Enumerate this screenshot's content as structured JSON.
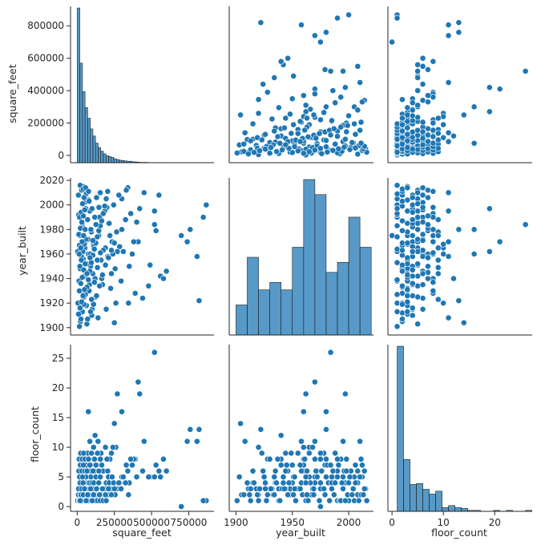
{
  "chart_data": {
    "type": "scatter",
    "variables": [
      "square_feet",
      "year_built",
      "floor_count"
    ],
    "axis_labels": {
      "square_feet": "square_feet",
      "year_built": "year_built",
      "floor_count": "floor_count"
    },
    "ranges": {
      "square_feet": [
        -45000,
        920000
      ],
      "year_built": [
        1894,
        2022
      ],
      "floor_count": [
        -0.8,
        27.3
      ]
    },
    "ticks": {
      "square_feet_x": [
        0,
        250000,
        500000,
        750000
      ],
      "square_feet_x_labels": [
        "0",
        "250000",
        "500000",
        "750000"
      ],
      "square_feet_y": [
        0,
        200000,
        400000,
        600000,
        800000
      ],
      "square_feet_y_labels": [
        "0",
        "200000",
        "400000",
        "600000",
        "800000"
      ],
      "year_built": [
        1900,
        1950,
        2000
      ],
      "year_built_labels": [
        "1900",
        "1950",
        "2000"
      ],
      "year_built_y": [
        1900,
        1920,
        1940,
        1960,
        1980,
        2000,
        2020
      ],
      "year_built_y_labels": [
        "1900",
        "1920",
        "1940",
        "1960",
        "1980",
        "2000",
        "2020"
      ],
      "floor_count": [
        0,
        10,
        20
      ],
      "floor_count_labels": [
        "0",
        "10",
        "20"
      ],
      "floor_count_y": [
        0,
        5,
        10,
        15,
        20,
        25
      ],
      "floor_count_y_labels": [
        "0",
        "5",
        "10",
        "15",
        "20",
        "25"
      ]
    },
    "colors": {
      "points": "#1f77b4",
      "bars": "#1f77b4",
      "edge": "#ffffff",
      "axis": "#262626"
    },
    "hist_square_feet": {
      "bin_start": 0,
      "bin_width": 17600,
      "counts": [
        870,
        560,
        400,
        310,
        250,
        190,
        150,
        110,
        85,
        65,
        50,
        40,
        35,
        30,
        22,
        18,
        14,
        12,
        10,
        8,
        8,
        5,
        4,
        3,
        2,
        2,
        2,
        1,
        1,
        1,
        1,
        1,
        1,
        0,
        0,
        0,
        0,
        0,
        0,
        0,
        1,
        0,
        0,
        0,
        0,
        0,
        1,
        0,
        0
      ]
    },
    "hist_year_built": {
      "bin_start": 1900,
      "bin_width": 10,
      "counts": [
        12,
        31,
        18,
        21,
        18,
        35,
        62,
        56,
        25,
        29,
        47,
        35
      ]
    },
    "hist_floor_count": {
      "bin_start": 1,
      "bin_width": 1.25,
      "counts": [
        172,
        54,
        28,
        29,
        23,
        18,
        21,
        4,
        6,
        4,
        3,
        1,
        1,
        0,
        0,
        1,
        0,
        1,
        0,
        0,
        1
      ]
    },
    "points": [
      [
        868000,
        2000,
        1
      ],
      [
        820000,
        1922,
        13
      ],
      [
        806000,
        1958,
        11
      ],
      [
        760000,
        1980,
        13
      ],
      [
        740000,
        1970,
        11
      ],
      [
        848000,
        1990,
        1
      ],
      [
        700000,
        1975,
        0
      ],
      [
        560000,
        1942,
        5
      ],
      [
        520000,
        1984,
        26
      ],
      [
        490000,
        1951,
        5
      ],
      [
        480000,
        1934,
        5
      ],
      [
        420000,
        1997,
        19
      ],
      [
        410000,
        1970,
        21
      ],
      [
        390000,
        1928,
        8
      ],
      [
        380000,
        1970,
        8
      ],
      [
        360000,
        1993,
        8
      ],
      [
        340000,
        2014,
        6
      ],
      [
        330000,
        2012,
        7
      ],
      [
        300000,
        2005,
        5
      ],
      [
        300000,
        1980,
        16
      ],
      [
        285000,
        1966,
        4
      ],
      [
        270000,
        1962,
        19
      ],
      [
        260000,
        1920,
        10
      ],
      [
        250000,
        1904,
        14
      ],
      [
        240000,
        1960,
        10
      ],
      [
        600000,
        1946,
        6
      ],
      [
        580000,
        1940,
        8
      ],
      [
        550000,
        2008,
        6
      ],
      [
        530000,
        1979,
        7
      ],
      [
        520000,
        1995,
        5
      ],
      [
        450000,
        2010,
        11
      ],
      [
        440000,
        1924,
        6
      ],
      [
        400000,
        1986,
        5
      ],
      [
        370000,
        1960,
        7
      ],
      [
        350000,
        1950,
        4
      ],
      [
        230000,
        1944,
        9
      ],
      [
        220000,
        1975,
        8
      ],
      [
        210000,
        1985,
        5
      ],
      [
        200000,
        1998,
        8
      ],
      [
        190000,
        1965,
        10
      ],
      [
        170000,
        1935,
        6
      ],
      [
        160000,
        1955,
        9
      ],
      [
        150000,
        1990,
        8
      ],
      [
        140000,
        1908,
        11
      ],
      [
        130000,
        2006,
        7
      ],
      [
        120000,
        1940,
        12
      ],
      [
        110000,
        1968,
        10
      ],
      [
        100000,
        1915,
        6
      ],
      [
        95000,
        1978,
        9
      ],
      [
        90000,
        1950,
        7
      ],
      [
        85000,
        1995,
        11
      ],
      [
        80000,
        1930,
        8
      ],
      [
        75000,
        1960,
        16
      ],
      [
        70000,
        1988,
        9
      ],
      [
        65000,
        1903,
        5
      ],
      [
        60000,
        1945,
        7
      ],
      [
        55000,
        1970,
        4
      ],
      [
        50000,
        2002,
        6
      ],
      [
        45000,
        1925,
        5
      ],
      [
        40000,
        1956,
        3
      ],
      [
        35000,
        1982,
        4
      ],
      [
        30000,
        2012,
        5
      ],
      [
        25000,
        1912,
        2
      ],
      [
        20000,
        1948,
        3
      ],
      [
        15000,
        1967,
        2
      ],
      [
        10000,
        1992,
        1
      ],
      [
        5000,
        1920,
        1
      ],
      [
        3000,
        1962,
        1
      ],
      [
        8000,
        2008,
        2
      ],
      [
        12000,
        1938,
        1
      ],
      [
        18000,
        1975,
        3
      ],
      [
        22000,
        1905,
        2
      ],
      [
        28000,
        1958,
        4
      ],
      [
        33000,
        1985,
        3
      ],
      [
        38000,
        1928,
        2
      ],
      [
        42000,
        2015,
        3
      ],
      [
        48000,
        1942,
        4
      ],
      [
        52000,
        1965,
        5
      ],
      [
        58000,
        1997,
        4
      ],
      [
        62000,
        1918,
        3
      ],
      [
        68000,
        1952,
        5
      ],
      [
        72000,
        1972,
        6
      ],
      [
        78000,
        2004,
        3
      ],
      [
        82000,
        1935,
        4
      ],
      [
        88000,
        1960,
        6
      ],
      [
        92000,
        1980,
        5
      ],
      [
        98000,
        1910,
        4
      ],
      [
        105000,
        1944,
        3
      ],
      [
        112000,
        1966,
        4
      ],
      [
        118000,
        1990,
        6
      ],
      [
        125000,
        1925,
        5
      ],
      [
        135000,
        1955,
        3
      ],
      [
        145000,
        1975,
        4
      ],
      [
        155000,
        2010,
        5
      ],
      [
        165000,
        1940,
        7
      ],
      [
        175000,
        1963,
        6
      ],
      [
        185000,
        1995,
        3
      ],
      [
        195000,
        1915,
        4
      ],
      [
        205000,
        1958,
        6
      ],
      [
        215000,
        1985,
        4
      ],
      [
        225000,
        1932,
        3
      ],
      [
        235000,
        1970,
        5
      ],
      [
        245000,
        2000,
        4
      ],
      [
        255000,
        1948,
        2
      ],
      [
        265000,
        1978,
        3
      ],
      [
        280000,
        2008,
        4
      ],
      [
        295000,
        1938,
        3
      ],
      [
        310000,
        1962,
        5
      ],
      [
        325000,
        1988,
        4
      ],
      [
        345000,
        1920,
        2
      ],
      [
        15000,
        1901,
        1
      ],
      [
        25000,
        1907,
        2
      ],
      [
        35000,
        1913,
        1
      ],
      [
        45000,
        1919,
        2
      ],
      [
        55000,
        1927,
        1
      ],
      [
        65000,
        1933,
        2
      ],
      [
        75000,
        1939,
        1
      ],
      [
        85000,
        1946,
        2
      ],
      [
        95000,
        1953,
        1
      ],
      [
        105000,
        1959,
        2
      ],
      [
        115000,
        1964,
        1
      ],
      [
        125000,
        1969,
        2
      ],
      [
        135000,
        1974,
        1
      ],
      [
        145000,
        1979,
        2
      ],
      [
        155000,
        1983,
        1
      ],
      [
        165000,
        1987,
        2
      ],
      [
        175000,
        1993,
        1
      ],
      [
        185000,
        1999,
        2
      ],
      [
        195000,
        2005,
        1
      ],
      [
        205000,
        2011,
        2
      ],
      [
        20000,
        2016,
        1
      ],
      [
        40000,
        2013,
        2
      ],
      [
        60000,
        2009,
        1
      ],
      [
        80000,
        2003,
        2
      ],
      [
        100000,
        1997,
        1
      ],
      [
        18000,
        1950,
        4
      ],
      [
        28000,
        1955,
        3
      ],
      [
        38000,
        1962,
        4
      ],
      [
        48000,
        1968,
        3
      ],
      [
        58000,
        1972,
        5
      ],
      [
        14000,
        1930,
        3
      ],
      [
        24000,
        1936,
        4
      ],
      [
        34000,
        1941,
        3
      ],
      [
        44000,
        1947,
        4
      ],
      [
        54000,
        1952,
        3
      ],
      [
        16000,
        1990,
        5
      ],
      [
        26000,
        1994,
        4
      ],
      [
        36000,
        2001,
        5
      ],
      [
        46000,
        2006,
        4
      ],
      [
        56000,
        2014,
        3
      ],
      [
        9000,
        1911,
        3
      ],
      [
        19000,
        1916,
        4
      ],
      [
        29000,
        1921,
        3
      ],
      [
        39000,
        1926,
        4
      ],
      [
        49000,
        1931,
        3
      ],
      [
        11000,
        1976,
        6
      ],
      [
        21000,
        1981,
        7
      ],
      [
        31000,
        1986,
        6
      ],
      [
        41000,
        1991,
        7
      ],
      [
        51000,
        1996,
        6
      ],
      [
        13000,
        1960,
        8
      ],
      [
        23000,
        1965,
        9
      ],
      [
        33000,
        1970,
        8
      ],
      [
        43000,
        1975,
        9
      ],
      [
        53000,
        1980,
        8
      ],
      [
        70000,
        1907,
        2
      ],
      [
        90000,
        1913,
        3
      ],
      [
        110000,
        1919,
        2
      ],
      [
        130000,
        1926,
        3
      ],
      [
        150000,
        1934,
        2
      ],
      [
        170000,
        1943,
        3
      ],
      [
        190000,
        1951,
        2
      ],
      [
        210000,
        1957,
        3
      ],
      [
        230000,
        1963,
        2
      ],
      [
        250000,
        1969,
        3
      ],
      [
        66000,
        1944,
        6
      ],
      [
        86000,
        1957,
        7
      ],
      [
        106000,
        1971,
        6
      ],
      [
        126000,
        1984,
        7
      ],
      [
        146000,
        1998,
        6
      ],
      [
        76000,
        2011,
        8
      ],
      [
        96000,
        1923,
        9
      ],
      [
        116000,
        1937,
        8
      ],
      [
        136000,
        1949,
        9
      ],
      [
        156000,
        1961,
        8
      ]
    ]
  }
}
